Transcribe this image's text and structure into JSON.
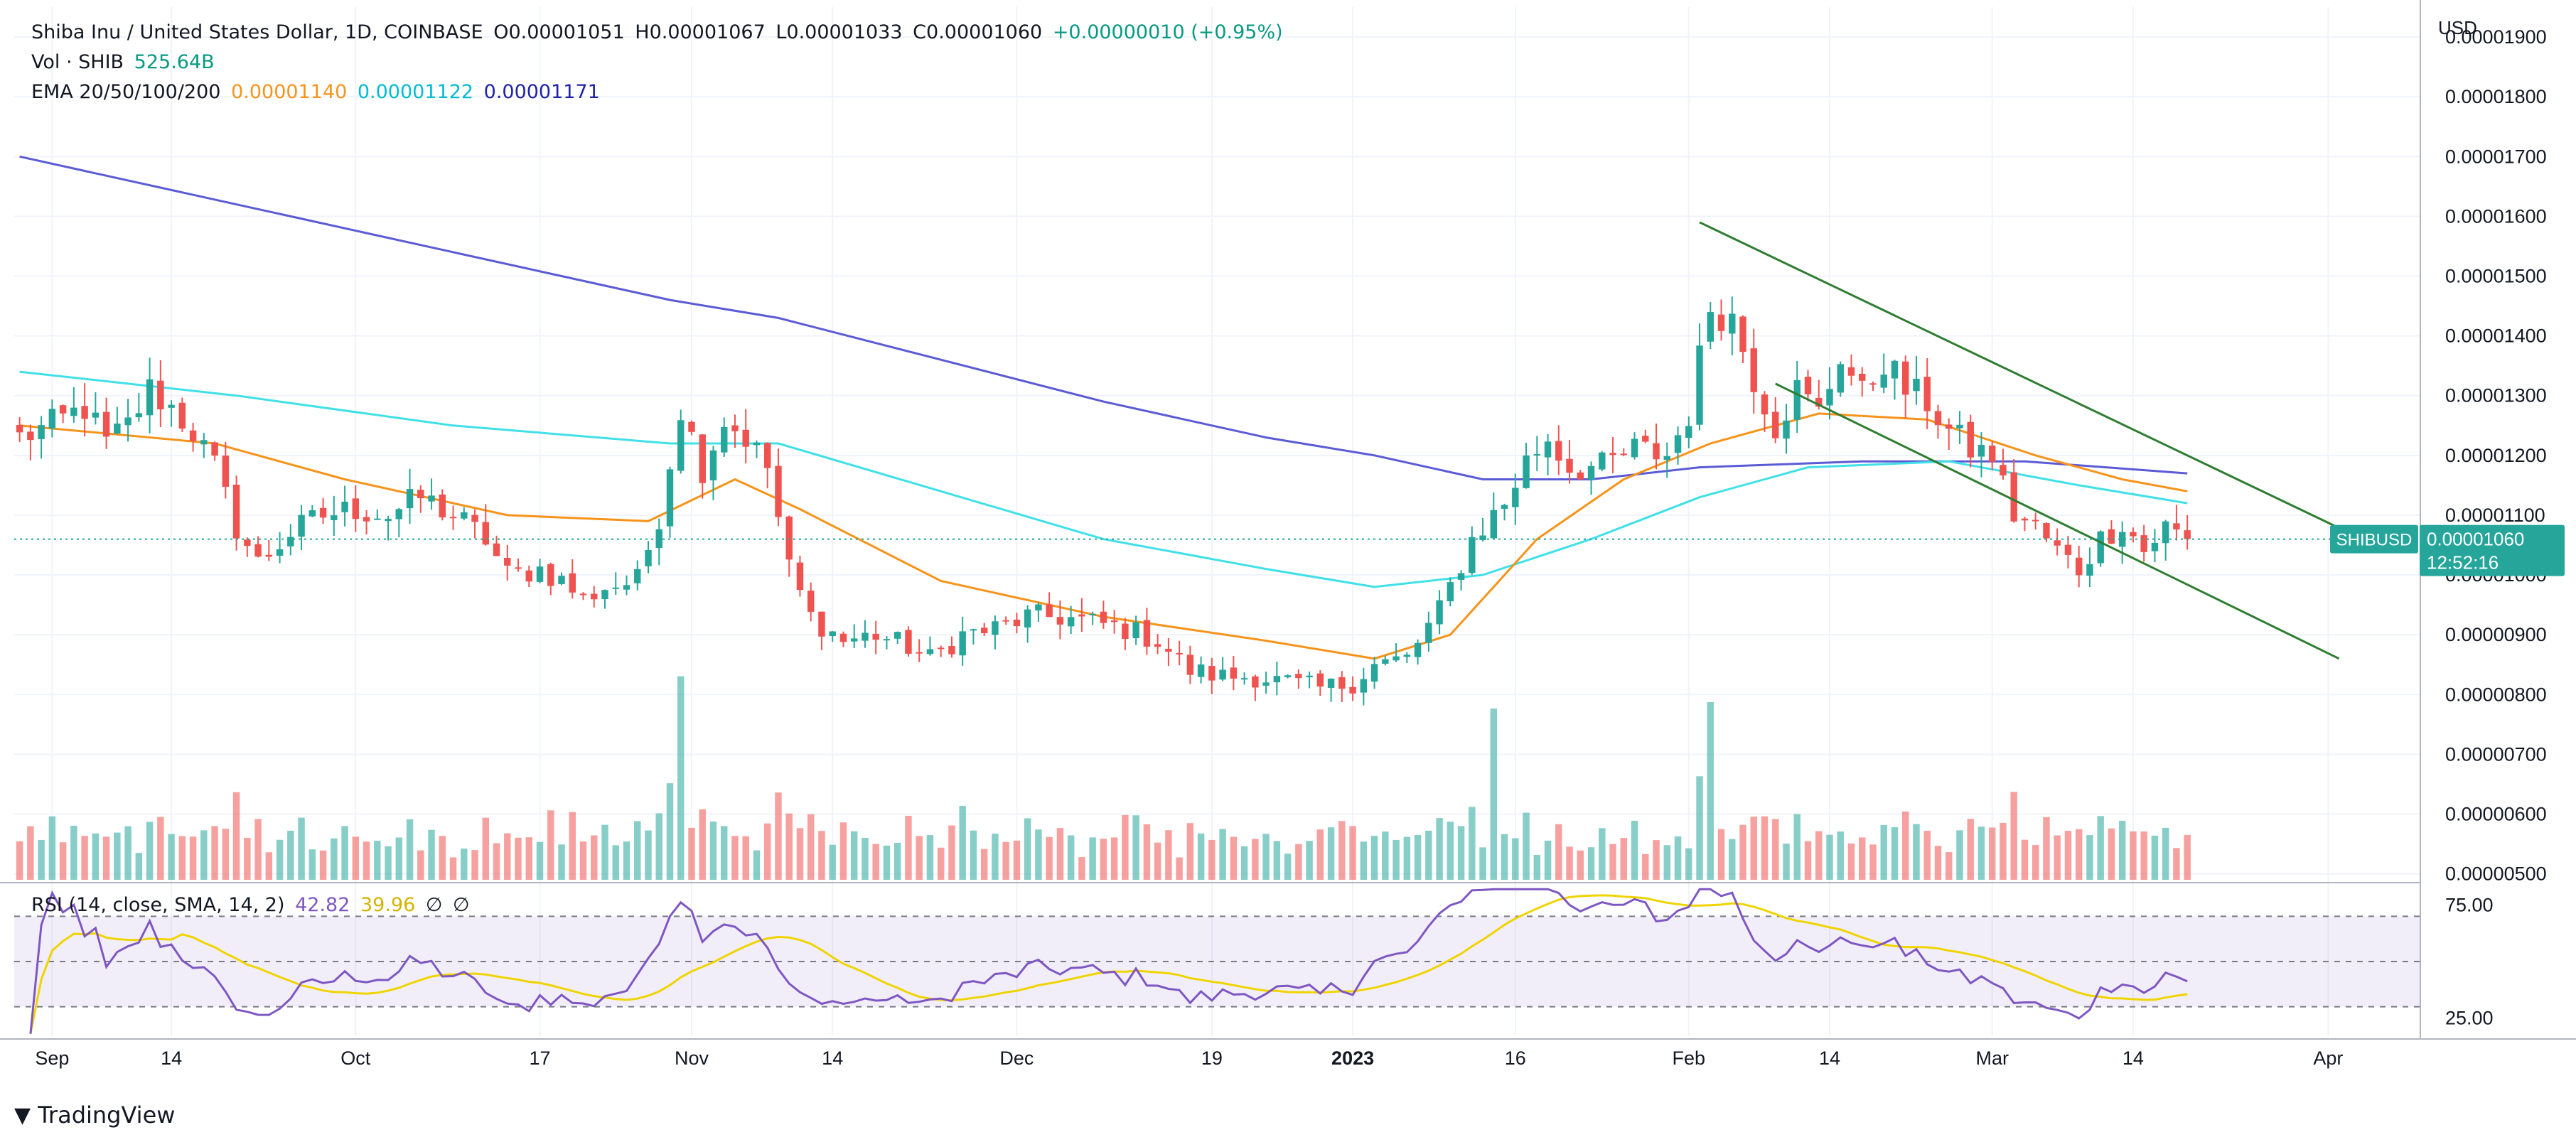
{
  "header": {
    "symbol": "Shiba Inu / United States Dollar, 1D, COINBASE",
    "o_label": "O",
    "o": "0.00001051",
    "h_label": "H",
    "h": "0.00001067",
    "l_label": "L",
    "l": "0.00001033",
    "c_label": "C",
    "c": "0.00001060",
    "change": "+0.00000010 (+0.95%)",
    "vol_label": "Vol · SHIB",
    "vol": "525.64B",
    "ema_label": "EMA 20/50/100/200",
    "ema20": "0.00001140",
    "ema50": "0.00001122",
    "ema100": "0.00001171"
  },
  "rsi_header": {
    "label": "RSI (14, close, SMA, 14, 2)",
    "rsi": "42.82",
    "sma": "39.96",
    "sym1": "∅",
    "sym2": "∅"
  },
  "price_tag": {
    "symbol": "SHIBUSD",
    "price": "0.00001060",
    "countdown": "12:52:16"
  },
  "brand": "TradingView",
  "colors": {
    "up": "#26a69a",
    "down": "#ef5350",
    "ema20": "#f7931a",
    "ema50": "#40e0e8",
    "ema200": "#5b5bd6",
    "channel": "#2e7d32",
    "rsi": "#7e57c2",
    "rsi_sma": "#f0d400"
  },
  "chart_data": {
    "type": "candlestick",
    "title": "Shiba Inu / United States Dollar, 1D, COINBASE",
    "currency": "USD",
    "y_range": [
      4.9e-06,
      1.95e-05
    ],
    "y_ticks": [
      "0.00001900",
      "0.00001800",
      "0.00001700",
      "0.00001600",
      "0.00001500",
      "0.00001400",
      "0.00001300",
      "0.00001200",
      "0.00001100",
      "0.00001000",
      "0.00000900",
      "0.00000800",
      "0.00000700",
      "0.00000600",
      "0.00000500"
    ],
    "y_tick_values": [
      1.9e-05,
      1.8e-05,
      1.7e-05,
      1.6e-05,
      1.5e-05,
      1.4e-05,
      1.3e-05,
      1.2e-05,
      1.1e-05,
      1e-05,
      9e-06,
      8e-06,
      7e-06,
      6e-06,
      5e-06
    ],
    "x_ticks": [
      {
        "label": "Sep",
        "day": 3
      },
      {
        "label": "14",
        "day": 14
      },
      {
        "label": "Oct",
        "day": 31
      },
      {
        "label": "17",
        "day": 48
      },
      {
        "label": "Nov",
        "day": 62
      },
      {
        "label": "14",
        "day": 75
      },
      {
        "label": "Dec",
        "day": 92
      },
      {
        "label": "19",
        "day": 110
      },
      {
        "label": "2023",
        "day": 123
      },
      {
        "label": "16",
        "day": 138
      },
      {
        "label": "Feb",
        "day": 154
      },
      {
        "label": "14",
        "day": 167
      },
      {
        "label": "Mar",
        "day": 182
      },
      {
        "label": "14",
        "day": 195
      },
      {
        "label": "Apr",
        "day": 213
      }
    ],
    "total_days": 222,
    "keypoints": [
      [
        0,
        1.23e-05
      ],
      [
        3,
        1.25e-05
      ],
      [
        6,
        1.28e-05
      ],
      [
        8,
        1.22e-05
      ],
      [
        10,
        1.25e-05
      ],
      [
        12,
        1.31e-05
      ],
      [
        14,
        1.28e-05
      ],
      [
        16,
        1.24e-05
      ],
      [
        18,
        1.18e-05
      ],
      [
        20,
        1.08e-05
      ],
      [
        22,
        1.02e-05
      ],
      [
        25,
        1.07e-05
      ],
      [
        28,
        1.1e-05
      ],
      [
        31,
        1.11e-05
      ],
      [
        34,
        1.1e-05
      ],
      [
        37,
        1.13e-05
      ],
      [
        40,
        1.1e-05
      ],
      [
        43,
        1.06e-05
      ],
      [
        45,
        1e-05
      ],
      [
        48,
        1.01e-05
      ],
      [
        50,
        9.9e-06
      ],
      [
        52,
        9.6e-06
      ],
      [
        54,
        9.8e-06
      ],
      [
        57,
        9.9e-06
      ],
      [
        59,
        1.1e-05
      ],
      [
        61,
        1.28e-05
      ],
      [
        63,
        1.18e-05
      ],
      [
        65,
        1.26e-05
      ],
      [
        67,
        1.23e-05
      ],
      [
        69,
        1.18e-05
      ],
      [
        71,
        1.01e-05
      ],
      [
        73,
        9.3e-06
      ],
      [
        76,
        8.9e-06
      ],
      [
        79,
        9e-06
      ],
      [
        82,
        8.8e-06
      ],
      [
        84,
        8.6e-06
      ],
      [
        87,
        9e-06
      ],
      [
        90,
        9.1e-06
      ],
      [
        93,
        9.3e-06
      ],
      [
        96,
        9.3e-06
      ],
      [
        99,
        9.2e-06
      ],
      [
        102,
        9.1e-06
      ],
      [
        105,
        8.9e-06
      ],
      [
        108,
        8.4e-06
      ],
      [
        111,
        8.3e-06
      ],
      [
        114,
        8.3e-06
      ],
      [
        117,
        8.2e-06
      ],
      [
        120,
        8.1e-06
      ],
      [
        123,
        8.2e-06
      ],
      [
        125,
        8.5e-06
      ],
      [
        128,
        8.6e-06
      ],
      [
        131,
        9.4e-06
      ],
      [
        134,
        1.06e-05
      ],
      [
        137,
        1.12e-05
      ],
      [
        139,
        1.19e-05
      ],
      [
        141,
        1.23e-05
      ],
      [
        143,
        1.18e-05
      ],
      [
        146,
        1.18e-05
      ],
      [
        149,
        1.21e-05
      ],
      [
        152,
        1.2e-05
      ],
      [
        154,
        1.27e-05
      ],
      [
        156,
        1.45e-05
      ],
      [
        158,
        1.43e-05
      ],
      [
        160,
        1.33e-05
      ],
      [
        162,
        1.25e-05
      ],
      [
        164,
        1.31e-05
      ],
      [
        166,
        1.27e-05
      ],
      [
        168,
        1.37e-05
      ],
      [
        170,
        1.3e-05
      ],
      [
        172,
        1.36e-05
      ],
      [
        174,
        1.31e-05
      ],
      [
        176,
        1.29e-05
      ],
      [
        178,
        1.24e-05
      ],
      [
        180,
        1.21e-05
      ],
      [
        182,
        1.2e-05
      ],
      [
        184,
        1.1e-05
      ],
      [
        186,
        1.08e-05
      ],
      [
        188,
        1.04e-05
      ],
      [
        190,
        1.01e-05
      ],
      [
        192,
        1.06e-05
      ],
      [
        194,
        1.09e-05
      ],
      [
        196,
        1.04e-05
      ],
      [
        198,
        1.08e-05
      ],
      [
        200,
        1.06e-05
      ]
    ],
    "ema20_curve": [
      [
        0,
        1.25e-05
      ],
      [
        18,
        1.22e-05
      ],
      [
        30,
        1.16e-05
      ],
      [
        45,
        1.1e-05
      ],
      [
        58,
        1.09e-05
      ],
      [
        66,
        1.16e-05
      ],
      [
        72,
        1.11e-05
      ],
      [
        85,
        9.9e-06
      ],
      [
        100,
        9.3e-06
      ],
      [
        115,
        8.9e-06
      ],
      [
        125,
        8.6e-06
      ],
      [
        132,
        9e-06
      ],
      [
        140,
        1.06e-05
      ],
      [
        148,
        1.16e-05
      ],
      [
        156,
        1.22e-05
      ],
      [
        166,
        1.27e-05
      ],
      [
        176,
        1.26e-05
      ],
      [
        186,
        1.2e-05
      ],
      [
        194,
        1.16e-05
      ],
      [
        200,
        1.14e-05
      ]
    ],
    "ema50_curve": [
      [
        0,
        1.34e-05
      ],
      [
        20,
        1.3e-05
      ],
      [
        40,
        1.25e-05
      ],
      [
        60,
        1.22e-05
      ],
      [
        70,
        1.22e-05
      ],
      [
        85,
        1.14e-05
      ],
      [
        100,
        1.06e-05
      ],
      [
        115,
        1.01e-05
      ],
      [
        125,
        9.8e-06
      ],
      [
        135,
        1e-05
      ],
      [
        145,
        1.06e-05
      ],
      [
        155,
        1.13e-05
      ],
      [
        165,
        1.18e-05
      ],
      [
        178,
        1.19e-05
      ],
      [
        190,
        1.15e-05
      ],
      [
        200,
        1.12e-05
      ]
    ],
    "ema200_curve": [
      [
        0,
        1.7e-05
      ],
      [
        25,
        1.6e-05
      ],
      [
        50,
        1.5e-05
      ],
      [
        60,
        1.46e-05
      ],
      [
        70,
        1.43e-05
      ],
      [
        85,
        1.36e-05
      ],
      [
        100,
        1.29e-05
      ],
      [
        115,
        1.23e-05
      ],
      [
        125,
        1.2e-05
      ],
      [
        135,
        1.16e-05
      ],
      [
        145,
        1.16e-05
      ],
      [
        155,
        1.18e-05
      ],
      [
        170,
        1.19e-05
      ],
      [
        185,
        1.19e-05
      ],
      [
        200,
        1.17e-05
      ]
    ],
    "channel_lines": [
      {
        "from": [
          155,
          1.59e-05
        ],
        "to": [
          215,
          1.07e-05
        ]
      },
      {
        "from": [
          162,
          1.32e-05
        ],
        "to": [
          214,
          8.6e-06
        ]
      }
    ],
    "rsi": {
      "label": "RSI (14, close, SMA, 14, 2)",
      "value": 42.82,
      "sma_value": 39.96,
      "ticks": [
        75.0,
        25.0
      ],
      "upper_band": 70,
      "lower_band": 30,
      "range": [
        17,
        83
      ]
    }
  }
}
